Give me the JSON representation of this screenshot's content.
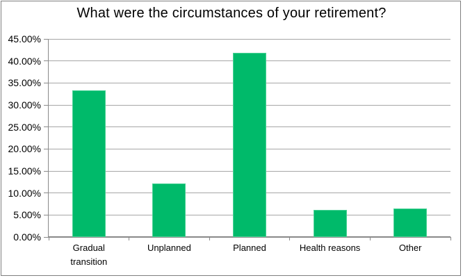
{
  "chart": {
    "title": "What were the circumstances of your retirement?"
  },
  "chart_data": {
    "type": "bar",
    "title": "What were the circumstances of your retirement?",
    "categories": [
      "Gradual transition",
      "Unplanned",
      "Planned",
      "Health reasons",
      "Other"
    ],
    "values": [
      33.3,
      12.2,
      41.8,
      6.1,
      6.4
    ],
    "value_unit": "%",
    "xlabel": "",
    "ylabel": "",
    "ylim": [
      0,
      45
    ],
    "y_tick_step": 5,
    "y_tick_labels": [
      "0.00%",
      "5.00%",
      "10.00%",
      "15.00%",
      "20.00%",
      "25.00%",
      "30.00%",
      "35.00%",
      "40.00%",
      "45.00%"
    ],
    "grid": "horizontal",
    "legend_position": "none",
    "colors": {
      "bar_fill": "#00BA6A",
      "bar_edge": "#4bd296",
      "gridline": "#a6a6a6",
      "axis": "#898989",
      "tick": "#898989",
      "text": "#000000",
      "chart_border": "#7f7f7f",
      "background": "#ffffff"
    }
  }
}
